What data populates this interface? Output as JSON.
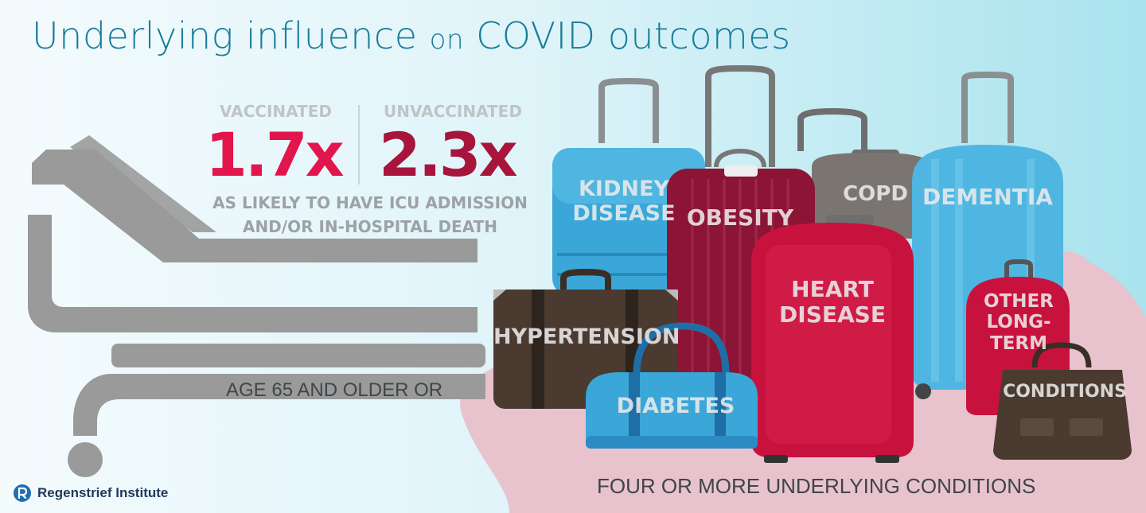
{
  "title": {
    "main": "Underlying influence",
    "small": "on",
    "tail": "COVID outcomes"
  },
  "stats": {
    "vaccinated": {
      "label": "VACCINATED",
      "value": "1.7x",
      "color": "#e2164d"
    },
    "unvaccinated": {
      "label": "UNVACCINATED",
      "value": "2.3x",
      "color": "#a8153c"
    },
    "caption_line1": "AS LIKELY TO HAVE ICU ADMISSION",
    "caption_line2": "AND/OR IN-HOSPITAL DEATH"
  },
  "age_text": "AGE 65 AND OLDER OR",
  "conditions_text": "FOUR OR MORE UNDERLYING CONDITIONS",
  "luggage": {
    "kidney_line1": "KIDNEY",
    "kidney_line2": "DISEASE",
    "obesity": "OBESITY",
    "copd": "COPD",
    "dementia": "DEMENTIA",
    "hypertension": "HYPERTENSION",
    "heart_line1": "HEART",
    "heart_line2": "DISEASE",
    "other_line1": "OTHER",
    "other_line2": "LONG-",
    "other_line3": "TERM",
    "conditions": "CONDITIONS",
    "diabetes": "DIABETES"
  },
  "logo": {
    "name": "Regenstrief Institute",
    "icon": "regenstrief-logo-icon"
  },
  "colors": {
    "title": "#1a7d9a",
    "bed": "#9a9a9a",
    "pink_blob": "#e8c3cd",
    "blue_case": "#3aa7d8",
    "red_case": "#c8123e",
    "maroon_case": "#8c1435",
    "brown_case": "#4a3a30"
  }
}
